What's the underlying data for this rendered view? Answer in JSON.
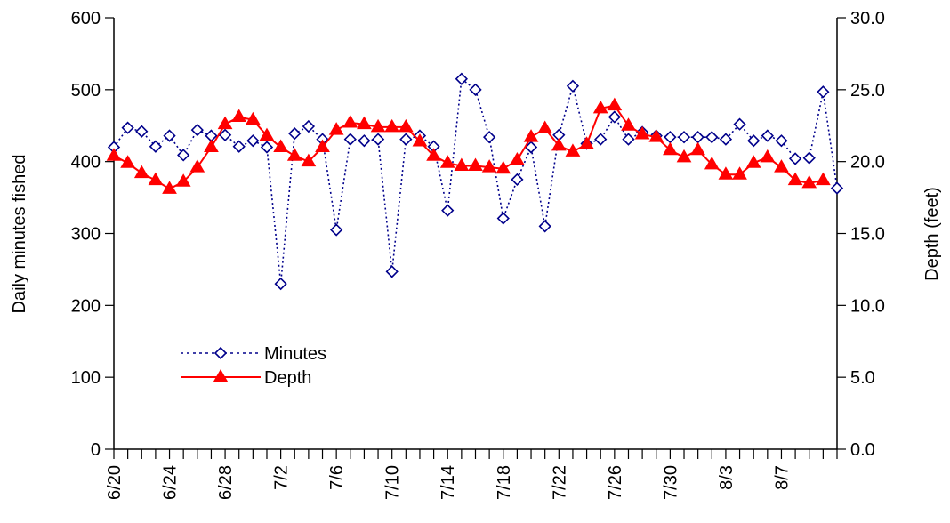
{
  "chart_data": {
    "type": "line",
    "title": "",
    "ylabel": "Daily minutes fished",
    "y2label": "Depth (feet)",
    "ylim": [
      0,
      600
    ],
    "y2lim": [
      0,
      30
    ],
    "yticks": [
      "0",
      "100",
      "200",
      "300",
      "400",
      "500",
      "600"
    ],
    "y2ticks": [
      "0.0",
      "5.0",
      "10.0",
      "15.0",
      "20.0",
      "25.0",
      "30.0"
    ],
    "x_start": "6/20",
    "x_end": "8/11",
    "x_tick_labels": [
      "6/20",
      "6/24",
      "6/28",
      "7/2",
      "7/6",
      "7/10",
      "7/14",
      "7/18",
      "7/22",
      "7/26",
      "7/30",
      "8/3",
      "8/7"
    ],
    "grid": false,
    "legend_position": "lower-left",
    "series": [
      {
        "name": "Minutes",
        "axis": "left",
        "color": "#00008B",
        "line": "dotted",
        "marker": "diamond-open",
        "x": [
          "6/20",
          "6/21",
          "6/22",
          "6/23",
          "6/24",
          "6/25",
          "6/26",
          "6/27",
          "6/28",
          "6/29",
          "6/30",
          "7/1",
          "7/2",
          "7/3",
          "7/4",
          "7/5",
          "7/6",
          "7/7",
          "7/8",
          "7/9",
          "7/10",
          "7/11",
          "7/12",
          "7/13",
          "7/14",
          "7/15",
          "7/16",
          "7/17",
          "7/18",
          "7/19",
          "7/20",
          "7/21",
          "7/22",
          "7/23",
          "7/24",
          "7/25",
          "7/26",
          "7/27",
          "7/28",
          "7/29",
          "7/30",
          "7/31",
          "8/1",
          "8/2",
          "8/3",
          "8/4",
          "8/5",
          "8/6",
          "8/7",
          "8/8",
          "8/9",
          "8/10",
          "8/11"
        ],
        "values": [
          420,
          447,
          442,
          421,
          436,
          409,
          444,
          436,
          437,
          421,
          429,
          420,
          230,
          439,
          449,
          431,
          305,
          431,
          429,
          431,
          247,
          431,
          436,
          421,
          332,
          515,
          500,
          434,
          321,
          375,
          420,
          310,
          437,
          505,
          425,
          431,
          462,
          431,
          441,
          436,
          434,
          434,
          434,
          434,
          431,
          452,
          429,
          436,
          429,
          404,
          405,
          497,
          363
        ]
      },
      {
        "name": "Depth",
        "axis": "right",
        "color": "#FF0000",
        "line": "solid",
        "marker": "triangle-filled",
        "x": [
          "6/20",
          "6/21",
          "6/22",
          "6/23",
          "6/24",
          "6/25",
          "6/26",
          "6/27",
          "6/28",
          "6/29",
          "6/30",
          "7/1",
          "7/2",
          "7/3",
          "7/4",
          "7/5",
          "7/6",
          "7/7",
          "7/8",
          "7/9",
          "7/10",
          "7/11",
          "7/12",
          "7/13",
          "7/14",
          "7/15",
          "7/16",
          "7/17",
          "7/18",
          "7/19",
          "7/20",
          "7/21",
          "7/22",
          "7/23",
          "7/24",
          "7/25",
          "7/26",
          "7/27",
          "7/28",
          "7/29",
          "7/30",
          "7/31",
          "8/1",
          "8/2",
          "8/3",
          "8/4",
          "8/5",
          "8/6",
          "8/7",
          "8/8",
          "8/9",
          "8/10"
        ],
        "values": [
          20.4,
          19.9,
          19.2,
          18.7,
          18.1,
          18.6,
          19.6,
          21.0,
          22.6,
          23.1,
          22.9,
          21.8,
          21.0,
          20.4,
          20.0,
          21.0,
          22.2,
          22.7,
          22.6,
          22.4,
          22.4,
          22.4,
          21.4,
          20.4,
          19.9,
          19.7,
          19.7,
          19.6,
          19.5,
          20.1,
          21.7,
          22.3,
          21.1,
          20.7,
          21.2,
          23.7,
          23.9,
          22.5,
          21.9,
          21.7,
          20.8,
          20.3,
          20.8,
          19.8,
          19.1,
          19.1,
          19.9,
          20.3,
          19.6,
          18.7,
          18.5,
          18.7
        ]
      }
    ]
  }
}
